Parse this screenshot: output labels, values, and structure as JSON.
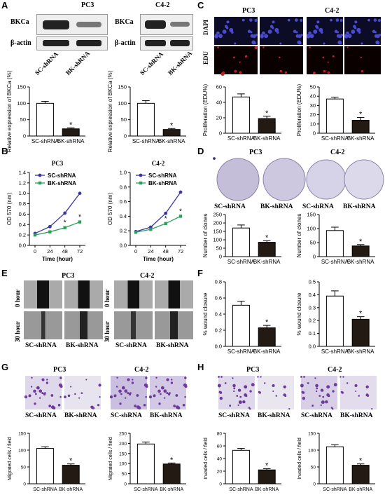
{
  "panels": {
    "A": "A",
    "B": "B",
    "C": "C",
    "D": "D",
    "E": "E",
    "F": "F",
    "G": "G",
    "H": "H"
  },
  "lines": {
    "PC3": "PC3",
    "C42": "C4-2"
  },
  "groups": {
    "sc": "SC-shRNA",
    "bk": "BK-shRNA"
  },
  "star": "*",
  "blot": {
    "bkca": "BKCa",
    "actin": "β-actin"
  },
  "stains": {
    "dapi": "DAPI",
    "edu": "EDU"
  },
  "times": {
    "h0": "0 hour",
    "h30": "30 hour"
  },
  "colors": {
    "sc_line": "#3a36a0",
    "bk_line": "#2aa05a",
    "bk_bar": "#231a14",
    "stain": "#6c3a9c"
  },
  "chart_data": [
    {
      "type": "bar",
      "panel": "A",
      "cell_line": "PC3",
      "ylabel": "Relative expression of BKCa (%)",
      "categories": [
        "SC-shRNA",
        "BK-shRNA"
      ],
      "values": [
        100,
        22
      ],
      "errors": [
        6,
        3
      ],
      "ylim": [
        0,
        150
      ],
      "yticks": [
        "0",
        "50",
        "100",
        "150"
      ]
    },
    {
      "type": "bar",
      "panel": "A",
      "cell_line": "C4-2",
      "ylabel": "Relative expression of BKCa (%)",
      "categories": [
        "SC-shRNA",
        "BK-shRNA"
      ],
      "values": [
        100,
        20
      ],
      "errors": [
        8,
        3
      ],
      "ylim": [
        0,
        150
      ],
      "yticks": [
        "0",
        "50",
        "100",
        "150"
      ]
    },
    {
      "type": "line",
      "panel": "B",
      "cell_line": "PC3",
      "xlabel": "Time (hour)",
      "ylabel": "OD 570 (nm)",
      "x": [
        0,
        24,
        48,
        72
      ],
      "xticks": [
        "0",
        "24",
        "48",
        "72"
      ],
      "ylim": [
        0,
        1.4
      ],
      "yticks": [
        "0.0",
        "0.2",
        "0.4",
        "0.6",
        "0.8",
        "1.0",
        "1.2",
        "1.4"
      ],
      "series": [
        {
          "name": "SC-shRNA",
          "values": [
            0.23,
            0.36,
            0.62,
            1.0
          ]
        },
        {
          "name": "BK-shRNA",
          "values": [
            0.2,
            0.26,
            0.34,
            0.45
          ]
        }
      ]
    },
    {
      "type": "line",
      "panel": "B",
      "cell_line": "C4-2",
      "xlabel": "Time (hour)",
      "ylabel": "OD 570 (nm)",
      "x": [
        0,
        24,
        48,
        72
      ],
      "xticks": [
        "0",
        "24",
        "48",
        "72"
      ],
      "ylim": [
        0,
        1.0
      ],
      "yticks": [
        "0.0",
        "0.2",
        "0.4",
        "0.6",
        "0.8",
        "1.0"
      ],
      "series": [
        {
          "name": "SC-shRNA",
          "values": [
            0.19,
            0.25,
            0.44,
            0.73
          ]
        },
        {
          "name": "BK-shRNA",
          "values": [
            0.18,
            0.22,
            0.3,
            0.4
          ]
        }
      ]
    },
    {
      "type": "bar",
      "panel": "C",
      "cell_line": "PC3",
      "ylabel": "Proliferation (EDU%)",
      "categories": [
        "SC-shRNA",
        "BK-shRNA"
      ],
      "values": [
        47,
        19
      ],
      "errors": [
        4,
        3
      ],
      "ylim": [
        0,
        60
      ],
      "yticks": [
        "0",
        "20",
        "40",
        "60"
      ]
    },
    {
      "type": "bar",
      "panel": "C",
      "cell_line": "C4-2",
      "ylabel": "Proliferation (EDU%)",
      "categories": [
        "SC-shRNA",
        "BK-shRNA"
      ],
      "values": [
        37,
        14
      ],
      "errors": [
        2,
        3
      ],
      "ylim": [
        0,
        50
      ],
      "yticks": [
        "0",
        "10",
        "20",
        "30",
        "40",
        "50"
      ]
    },
    {
      "type": "bar",
      "panel": "D",
      "cell_line": "PC3",
      "ylabel": "Number of clones",
      "categories": [
        "SC-shRNA",
        "BK-shRNA"
      ],
      "values": [
        170,
        85
      ],
      "errors": [
        18,
        9
      ],
      "ylim": [
        0,
        250
      ],
      "yticks": [
        "0",
        "50",
        "100",
        "150",
        "200",
        "250"
      ]
    },
    {
      "type": "bar",
      "panel": "D",
      "cell_line": "C4-2",
      "ylabel": "Number of clones",
      "categories": [
        "SC-shRNA",
        "BK-shRNA"
      ],
      "values": [
        93,
        38
      ],
      "errors": [
        12,
        5
      ],
      "ylim": [
        0,
        150
      ],
      "yticks": [
        "0",
        "50",
        "100",
        "150"
      ]
    },
    {
      "type": "bar",
      "panel": "F",
      "cell_line": "PC3",
      "ylabel": "% wound closure",
      "categories": [
        "SC-shRNA",
        "BK-shRNA"
      ],
      "values": [
        0.51,
        0.23
      ],
      "errors": [
        0.05,
        0.03
      ],
      "ylim": [
        0,
        0.8
      ],
      "yticks": [
        "0.0",
        "0.2",
        "0.4",
        "0.6",
        "0.8"
      ]
    },
    {
      "type": "bar",
      "panel": "F",
      "cell_line": "C4-2",
      "ylabel": "% wound closure",
      "categories": [
        "SC-shRNA",
        "BK-shRNA"
      ],
      "values": [
        0.39,
        0.21
      ],
      "errors": [
        0.04,
        0.02
      ],
      "ylim": [
        0,
        0.5
      ],
      "yticks": [
        "0.0",
        "0.1",
        "0.2",
        "0.3",
        "0.4",
        "0.5"
      ]
    },
    {
      "type": "bar",
      "panel": "G",
      "cell_line": "PC3",
      "ylabel": "Migrated cells / field",
      "categories": [
        "SC-shRNA",
        "BK-shRNA"
      ],
      "values": [
        105,
        55
      ],
      "errors": [
        5,
        4
      ],
      "ylim": [
        0,
        150
      ],
      "yticks": [
        "0",
        "50",
        "100",
        "150"
      ]
    },
    {
      "type": "bar",
      "panel": "G",
      "cell_line": "C4-2",
      "ylabel": "Migrated cells / field",
      "categories": [
        "SC-shRNA",
        "BK-shRNA"
      ],
      "values": [
        197,
        98
      ],
      "errors": [
        10,
        5
      ],
      "ylim": [
        0,
        250
      ],
      "yticks": [
        "0",
        "50",
        "100",
        "150",
        "200",
        "250"
      ]
    },
    {
      "type": "bar",
      "panel": "H",
      "cell_line": "PC3",
      "ylabel": "Invaded cells / field",
      "categories": [
        "SC-shRNA",
        "BK-shRNA"
      ],
      "values": [
        53,
        22
      ],
      "errors": [
        3,
        2
      ],
      "ylim": [
        0,
        80
      ],
      "yticks": [
        "0",
        "20",
        "40",
        "60",
        "80"
      ]
    },
    {
      "type": "bar",
      "panel": "H",
      "cell_line": "C4-2",
      "ylabel": "Invaded cells / field",
      "categories": [
        "SC-shRNA",
        "BK-shRNA"
      ],
      "values": [
        110,
        55
      ],
      "errors": [
        6,
        4
      ],
      "ylim": [
        0,
        150
      ],
      "yticks": [
        "0",
        "50",
        "100",
        "150"
      ]
    }
  ]
}
